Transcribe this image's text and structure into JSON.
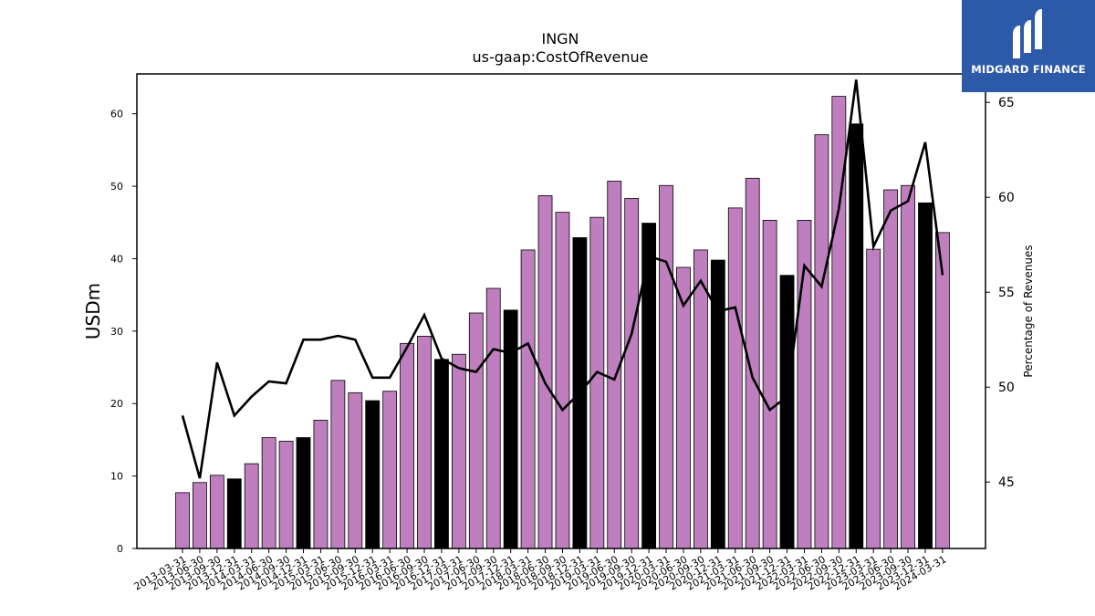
{
  "brand": {
    "name": "MIDGARD FINANCE",
    "bg_color": "#2c5aa8"
  },
  "chart_data": {
    "type": "bar",
    "title": "INGN",
    "subtitle": "us-gaap:CostOfRevenue",
    "ylabel": "USDm",
    "y2label": "Percentage of Revenues",
    "ylim": [
      0,
      65.5
    ],
    "y2lim": [
      41.5,
      66.5
    ],
    "yticks": [
      0,
      10,
      20,
      30,
      40,
      50,
      60
    ],
    "y2ticks": [
      45,
      50,
      55,
      60,
      65
    ],
    "grid": false,
    "colors": {
      "bar": "#bf7fbf",
      "bar_q4": "#000000",
      "line": "#000000"
    },
    "categories": [
      "2013-03-31",
      "2013-06-30",
      "2013-09-30",
      "2013-12-31",
      "2014-03-31",
      "2014-06-30",
      "2014-09-30",
      "2014-12-31",
      "2015-03-31",
      "2015-06-30",
      "2015-09-30",
      "2015-12-31",
      "2016-03-31",
      "2016-06-30",
      "2016-09-30",
      "2016-12-31",
      "2017-03-31",
      "2017-06-30",
      "2017-09-30",
      "2017-12-31",
      "2018-03-31",
      "2018-06-30",
      "2018-09-30",
      "2018-12-31",
      "2019-03-31",
      "2019-06-30",
      "2019-09-30",
      "2019-12-31",
      "2020-03-31",
      "2020-06-30",
      "2020-09-30",
      "2020-12-31",
      "2021-03-31",
      "2021-06-30",
      "2021-09-30",
      "2021-12-31",
      "2022-03-31",
      "2022-06-30",
      "2022-09-30",
      "2022-12-31",
      "2023-03-31",
      "2023-06-30",
      "2023-09-30",
      "2023-12-31",
      "2024-03-31"
    ],
    "series": [
      {
        "kind": "bar",
        "values": [
          7.7,
          9.1,
          10.1,
          9.6,
          11.7,
          15.3,
          14.8,
          15.3,
          17.7,
          23.2,
          21.5,
          20.4,
          21.7,
          28.3,
          29.3,
          26.1,
          26.8,
          32.5,
          35.9,
          32.9,
          41.2,
          48.7,
          46.4,
          42.9,
          45.7,
          50.7,
          48.3,
          44.9,
          50.1,
          38.8,
          41.2,
          39.8,
          47.0,
          51.1,
          45.3,
          37.7,
          45.3,
          57.1,
          62.4,
          58.6,
          41.3,
          49.5,
          50.1,
          47.7,
          43.6
        ]
      },
      {
        "kind": "line",
        "axis": "right",
        "values": [
          48.5,
          45.2,
          51.3,
          48.5,
          49.5,
          50.3,
          50.2,
          52.5,
          52.5,
          52.7,
          52.5,
          50.5,
          50.5,
          52.1,
          53.8,
          51.5,
          51.0,
          50.8,
          52.0,
          51.8,
          52.3,
          50.2,
          48.8,
          49.7,
          50.8,
          50.4,
          52.8,
          56.9,
          56.6,
          54.3,
          55.6,
          54.0,
          54.2,
          50.5,
          48.8,
          49.5,
          56.4,
          55.3,
          59.4,
          66.2,
          57.4,
          59.3,
          59.8,
          62.9,
          55.9
        ]
      }
    ]
  }
}
